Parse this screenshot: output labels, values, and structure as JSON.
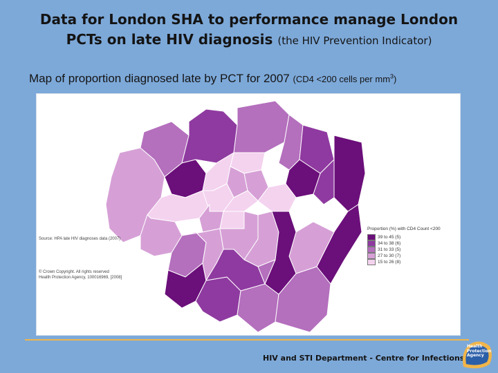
{
  "title": {
    "line1": "Data for London SHA to performance manage London",
    "line2_main": "PCTs on late HIV diagnosis",
    "line2_sub": "(the HIV Prevention Indicator)"
  },
  "map_caption": {
    "main": "Map of proportion diagnosed late by PCT for 2007",
    "unit_open": "(CD4 <200 cells per mm",
    "unit_exp": "3",
    "unit_close": ")"
  },
  "source_note": "Source: HPA late HIV diagnoses data (2007)",
  "copyright": {
    "line1": "© Crown Copyright. All rights reserved",
    "line2": "Health Protection Agency, 100016969, [2008]"
  },
  "legend": {
    "title": "Proportion (%) with CD4 Count <200",
    "classes": [
      {
        "label": "39 to 45  (5)",
        "color": "#6b0f7a"
      },
      {
        "label": "34 to 38  (6)",
        "color": "#8f3aa0"
      },
      {
        "label": "31 to 33  (5)",
        "color": "#b46fbd"
      },
      {
        "label": "27 to 30  (7)",
        "color": "#d6a0d6"
      },
      {
        "label": "15 to 26  (8)",
        "color": "#f4d3ef"
      }
    ]
  },
  "footer": {
    "department": "HIV and STI Department  -  Centre for Infections",
    "logo_line1": "Health",
    "logo_line2": "Protection",
    "logo_line3": "Agency"
  },
  "colors": {
    "background": "#7da9d9",
    "footer_rule": "#f0b54a",
    "map_border": "#ffffff"
  }
}
